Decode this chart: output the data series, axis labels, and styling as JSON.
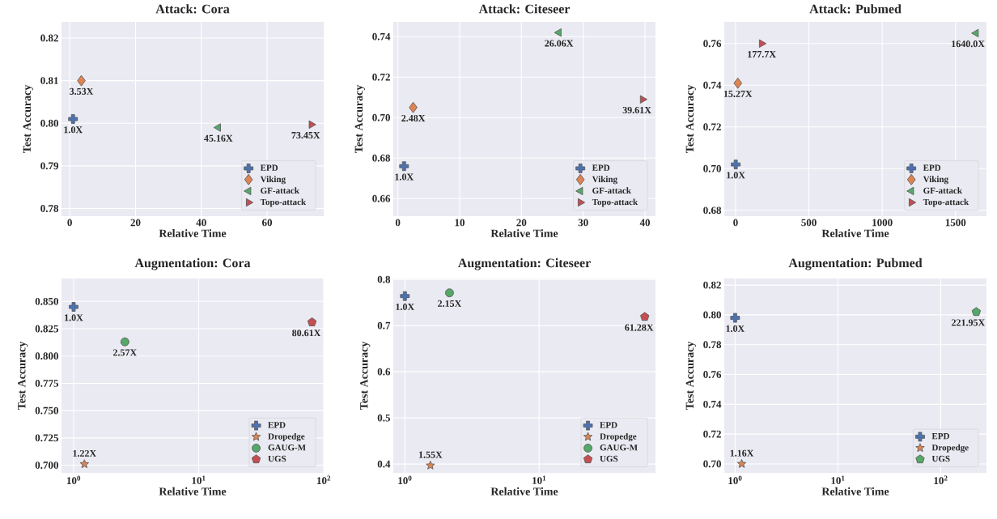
{
  "chart_data": [
    {
      "type": "scatter",
      "title": "Attack: Cora",
      "xlabel": "Relative Time",
      "ylabel": "Test Accuracy",
      "grid": true,
      "legend": "bottom right",
      "xlim": [
        -2.5,
        77.2
      ],
      "xticks": [
        0,
        20,
        40,
        60
      ],
      "ylim": [
        0.7782,
        0.8238
      ],
      "yticks": [
        0.78,
        0.79,
        {
          "value": 0.8,
          "label": "0.80"
        },
        0.81,
        0.82
      ],
      "series": [
        {
          "name": "EPD",
          "color": "#4c72b0",
          "marker": "cross",
          "x": [
            1.0
          ],
          "values": [
            0.801
          ]
        },
        {
          "name": "Viking",
          "color": "#dd8452",
          "marker": "diamond",
          "x": [
            3.53
          ],
          "values": [
            0.81
          ]
        },
        {
          "name": "GF-attack",
          "color": "#55a868",
          "marker": "triangle-left",
          "x": [
            45.16
          ],
          "values": [
            0.799
          ]
        },
        {
          "name": "Topo-attack",
          "color": "#c44e52",
          "marker": "triangle-right",
          "x": [
            73.45
          ],
          "values": [
            0.7997
          ]
        }
      ],
      "annotations": [
        {
          "text": "1.0X",
          "x": 1.0,
          "y": 0.801
        },
        {
          "text": "3.53X",
          "x": 3.53,
          "y": 0.81
        },
        {
          "text": "45.16X",
          "x": 45.16,
          "y": 0.799
        },
        {
          "text": "73.45X",
          "x": 73.45,
          "y": 0.7997
        }
      ]
    },
    {
      "type": "scatter",
      "title": "Attack: Citeseer",
      "xlabel": "Relative Time",
      "ylabel": "Test Accuracy",
      "grid": true,
      "legend": "bottom right",
      "xlim": [
        -0.74,
        41.7
      ],
      "xticks": [
        0,
        10,
        20,
        30,
        40
      ],
      "ylim": [
        0.6513,
        0.7473
      ],
      "yticks": [
        0.66,
        0.68,
        {
          "value": 0.7,
          "label": "0.70"
        },
        0.72,
        0.74
      ],
      "series": [
        {
          "name": "EPD",
          "color": "#4c72b0",
          "marker": "cross",
          "x": [
            1.0
          ],
          "values": [
            0.676
          ]
        },
        {
          "name": "Viking",
          "color": "#dd8452",
          "marker": "diamond",
          "x": [
            2.48
          ],
          "values": [
            0.705
          ]
        },
        {
          "name": "GF-attack",
          "color": "#55a868",
          "marker": "triangle-left",
          "x": [
            26.06
          ],
          "values": [
            0.742
          ]
        },
        {
          "name": "Topo-attack",
          "color": "#c44e52",
          "marker": "triangle-right",
          "x": [
            39.61
          ],
          "values": [
            0.709
          ]
        }
      ],
      "annotations": [
        {
          "text": "1.0X",
          "x": 1.0,
          "y": 0.676
        },
        {
          "text": "2.48X",
          "x": 2.48,
          "y": 0.705
        },
        {
          "text": "26.06X",
          "x": 26.06,
          "y": 0.742
        },
        {
          "text": "39.61X",
          "x": 39.61,
          "y": 0.709
        }
      ]
    },
    {
      "type": "scatter",
      "title": "Attack: Pubmed",
      "xlabel": "Relative Time",
      "ylabel": "Test Accuracy",
      "grid": true,
      "legend": "bottom right",
      "xlim": [
        -77,
        1711
      ],
      "xticks": [
        0,
        500,
        1000,
        1500
      ],
      "ylim": [
        0.6772,
        0.7704
      ],
      "yticks": [
        0.68,
        {
          "value": 0.7,
          "label": "0.70"
        },
        0.72,
        0.74,
        0.76
      ],
      "series": [
        {
          "name": "EPD",
          "color": "#4c72b0",
          "marker": "cross",
          "x": [
            1.0
          ],
          "values": [
            0.702
          ]
        },
        {
          "name": "Viking",
          "color": "#dd8452",
          "marker": "diamond",
          "x": [
            15.27
          ],
          "values": [
            0.741
          ]
        },
        {
          "name": "GF-attack",
          "color": "#55a868",
          "marker": "triangle-left",
          "x": [
            1640.0
          ],
          "values": [
            0.765
          ]
        },
        {
          "name": "Topo-attack",
          "color": "#c44e52",
          "marker": "triangle-right",
          "x": [
            177.7
          ],
          "values": [
            0.76
          ]
        }
      ],
      "annotations": [
        {
          "text": "1.0X",
          "x": 1.0,
          "y": 0.702
        },
        {
          "text": "15.27X",
          "x": 15.27,
          "y": 0.741
        },
        {
          "text": "1640.0X",
          "x": 1640.0,
          "y": 0.765
        },
        {
          "text": "177.7X",
          "x": 177.7,
          "y": 0.76
        }
      ]
    },
    {
      "type": "scatter",
      "title": "Augmentation: Cora",
      "xlabel": "Relative Time",
      "ylabel": "Test Accuracy",
      "grid": true,
      "legend": "bottom right",
      "log": "x",
      "xlim": [
        0.8,
        100
      ],
      "xticks": [
        {
          "value": 1,
          "label": "10$^{0}$"
        },
        {
          "value": 10,
          "label": "10$^{1}$"
        },
        {
          "value": 100,
          "label": "10$^{2}$"
        }
      ],
      "ylim": [
        0.693,
        0.871
      ],
      "yticks": [
        {
          "value": 0.7,
          "label": "0.700"
        },
        0.725,
        {
          "value": 0.75,
          "label": "0.750"
        },
        0.775,
        {
          "value": 0.8,
          "label": "0.800"
        },
        0.825,
        {
          "value": 0.85,
          "label": "0.850"
        }
      ],
      "series": [
        {
          "name": "EPD",
          "color": "#4c72b0",
          "marker": "cross",
          "x": [
            1.0
          ],
          "values": [
            0.845
          ]
        },
        {
          "name": "Dropedge",
          "color": "#dd8452",
          "marker": "star",
          "x": [
            1.22
          ],
          "values": [
            0.701
          ]
        },
        {
          "name": "GAUG-M",
          "color": "#55a868",
          "marker": "circle",
          "x": [
            2.57
          ],
          "values": [
            0.813
          ]
        },
        {
          "name": "UGS",
          "color": "#c44e52",
          "x": [
            80.61
          ],
          "values": [
            0.831
          ]
        }
      ],
      "annotations": [
        {
          "text": "1.0X",
          "x": 1.0,
          "y": 0.845
        },
        {
          "text": "1.22X",
          "x": 1.22,
          "y": 0.701
        },
        {
          "text": "2.57X",
          "x": 2.57,
          "y": 0.813
        },
        {
          "text": "80.61X",
          "x": 80.61,
          "y": 0.831
        }
      ]
    },
    {
      "type": "scatter",
      "title": "Augmentation: Citeseer",
      "xlabel": "Relative Time",
      "ylabel": "Test Accuracy",
      "grid": true,
      "legend": "bottom right",
      "log": "x",
      "xlim": [
        0.82,
        73.7
      ],
      "xticks": [
        {
          "value": 1,
          "label": "10$^{0}$"
        },
        {
          "value": 10,
          "label": "10$^{1}$"
        }
      ],
      "ylim": [
        0.381,
        0.802
      ],
      "yticks": [
        0.4,
        0.5,
        0.6,
        0.7,
        0.8
      ],
      "series": [
        {
          "name": "EPD",
          "color": "#4c72b0",
          "marker": "cross",
          "x": [
            1.0
          ],
          "values": [
            0.764
          ]
        },
        {
          "name": "Dropedge",
          "color": "#dd8452",
          "marker": "star",
          "x": [
            1.55
          ],
          "values": [
            0.397
          ]
        },
        {
          "name": "GAUG-M",
          "color": "#55a868",
          "marker": "circle",
          "x": [
            2.15
          ],
          "values": [
            0.771
          ]
        },
        {
          "name": "UGS",
          "color": "#c44e52",
          "x": [
            61.28
          ],
          "values": [
            0.719
          ]
        }
      ],
      "annotations": [
        {
          "text": "1.0X",
          "x": 1.0,
          "y": 0.764
        },
        {
          "text": "1.55X",
          "x": 1.55,
          "y": 0.397
        },
        {
          "text": "2.15X",
          "x": 2.15,
          "y": 0.771
        },
        {
          "text": "61.28X",
          "x": 61.28,
          "y": 0.719
        }
      ]
    },
    {
      "type": "scatter",
      "title": "Augmentation: Pubmed",
      "xlabel": "Relative Time",
      "ylabel": "Test Accuracy",
      "grid": true,
      "legend": "bottom right",
      "log": "x",
      "xlim": [
        0.785,
        279
      ],
      "xticks": [
        {
          "value": 1,
          "label": "10$^{0}$"
        },
        {
          "value": 10,
          "label": "10$^{1}$"
        },
        {
          "value": 100,
          "label": "10$^{2}$"
        }
      ],
      "ylim": [
        0.694,
        0.8244
      ],
      "yticks": [
        {
          "value": 0.7,
          "label": "0.70"
        },
        0.72,
        0.74,
        0.76,
        0.78,
        {
          "value": 0.8,
          "label": "0.80"
        },
        0.82
      ],
      "series": [
        {
          "name": "EPD",
          "color": "#4c72b0",
          "marker": "cross",
          "x": [
            1.0
          ],
          "values": [
            0.798
          ]
        },
        {
          "name": "Dropedge",
          "color": "#dd8452",
          "marker": "star",
          "x": [
            1.16
          ],
          "values": [
            0.7
          ]
        },
        {
          "name": "UGS",
          "color": "#55a868",
          "x": [
            221.95
          ],
          "values": [
            0.802
          ]
        }
      ],
      "annotations": [
        {
          "text": "1.0X",
          "x": 1.0,
          "y": 0.798
        },
        {
          "text": "1.16X",
          "x": 1.16,
          "y": 0.7
        },
        {
          "text": "221.95X",
          "x": 221.95,
          "y": 0.802
        }
      ]
    }
  ]
}
